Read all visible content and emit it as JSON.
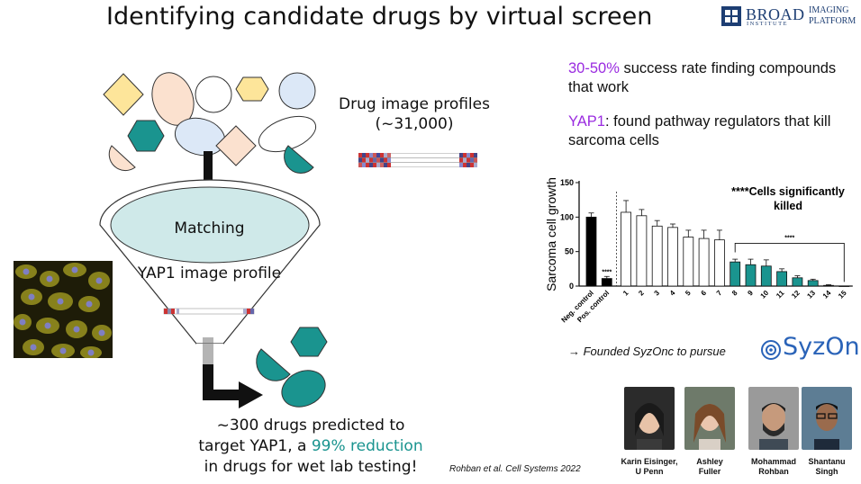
{
  "title": "Identifying candidate drugs by virtual screen",
  "logo": {
    "main": "BROAD",
    "sub": "INSTITUTE",
    "right_top": "IMAGING",
    "right_bottom": "PLATFORM"
  },
  "drug_profiles": {
    "line1": "Drug image profiles",
    "line2": "(~31,000)"
  },
  "funnel": {
    "matching_label": "Matching",
    "profile_label": "YAP1 image profile"
  },
  "result": {
    "line1": "~300 drugs predicted to",
    "line2_pre": "target YAP1, a ",
    "line2_accent": "99% reduction",
    "line3": "in drugs for wet lab testing!"
  },
  "stats": {
    "accent1": "30-50%",
    "text1": " success rate finding compounds that work",
    "accent2": "YAP1",
    "text2": ": found pathway regulators that kill sarcoma cells"
  },
  "founded": "→ Founded SyzOnc to pursue",
  "syzonc": "SyzOnc",
  "citation": "Rohban et al. Cell Systems 2022",
  "people": [
    {
      "line1": "Karin Eisinger,",
      "line2": "U Penn"
    },
    {
      "line1": "Ashley",
      "line2": "Fuller"
    },
    {
      "line1": "Mohammad",
      "line2": "Rohban"
    },
    {
      "line1": "Shantanu",
      "line2": "Singh"
    }
  ],
  "colors": {
    "teal": "#1a948f",
    "purple": "#9a2be0",
    "yellow": "#fde59a",
    "peach": "#fbe1cf",
    "lightblue": "#dce8f7",
    "dark_bar": "#000000"
  },
  "chart_data": {
    "type": "bar",
    "ylabel": "Sarcoma cell growth",
    "ylim": [
      0,
      150
    ],
    "yticks": [
      "0",
      "50",
      "100",
      "150"
    ],
    "categories": [
      "Neg. control",
      "Pos. control",
      "1",
      "2",
      "3",
      "4",
      "5",
      "6",
      "7",
      "8",
      "9",
      "10",
      "11",
      "12",
      "13",
      "14",
      "15"
    ],
    "values": [
      100,
      11,
      107,
      102,
      87,
      85,
      71,
      69,
      67,
      35,
      31,
      29,
      21,
      12,
      8,
      1,
      0
    ],
    "errors": [
      6,
      3,
      17,
      9,
      8,
      5,
      10,
      12,
      14,
      4,
      8,
      9,
      4,
      3,
      2,
      1,
      0
    ],
    "bar_styles": [
      "black",
      "black",
      "white",
      "white",
      "white",
      "white",
      "white",
      "white",
      "white",
      "teal",
      "teal",
      "teal",
      "teal",
      "teal",
      "teal",
      "teal",
      "teal"
    ],
    "annotation": "****Cells significantly killed",
    "bracket_label": "****",
    "pos_label": "****"
  }
}
